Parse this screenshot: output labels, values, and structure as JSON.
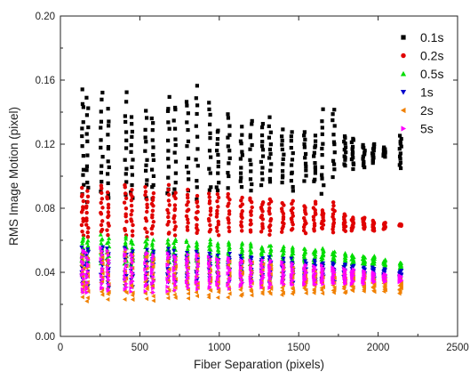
{
  "chart_data": {
    "type": "scatter",
    "title": "",
    "xlabel": "Fiber Separation (pixels)",
    "ylabel": "RMS Image Motion (pixel)",
    "xlim": [
      0,
      2500
    ],
    "ylim": [
      0.0,
      0.2
    ],
    "x_ticks": [
      "0",
      "500",
      "1000",
      "1500",
      "2000",
      "2500"
    ],
    "y_ticks": [
      "0.00",
      "0.04",
      "0.08",
      "0.12",
      "0.16",
      "0.20"
    ],
    "grid": false,
    "legend_position": "top-right",
    "x_columns": [
      140,
      170,
      260,
      300,
      410,
      450,
      540,
      580,
      680,
      720,
      800,
      860,
      940,
      990,
      1060,
      1140,
      1200,
      1270,
      1320,
      1400,
      1460,
      1540,
      1600,
      1650,
      1720,
      1790,
      1840,
      1910,
      1970,
      2040,
      2140
    ],
    "series": [
      {
        "name": "0.1s",
        "marker": "square",
        "color": "#000000",
        "y_range_min": [
          0.088,
          0.085,
          0.09,
          0.086,
          0.09,
          0.086,
          0.088,
          0.087,
          0.088,
          0.087,
          0.092,
          0.087,
          0.09,
          0.09,
          0.094,
          0.093,
          0.092,
          0.095,
          0.095,
          0.095,
          0.09,
          0.098,
          0.096,
          0.088,
          0.1,
          0.106,
          0.105,
          0.105,
          0.108,
          0.112,
          0.105
        ],
        "y_range_max": [
          0.153,
          0.148,
          0.152,
          0.14,
          0.151,
          0.138,
          0.14,
          0.137,
          0.15,
          0.145,
          0.148,
          0.156,
          0.148,
          0.13,
          0.14,
          0.13,
          0.135,
          0.133,
          0.136,
          0.128,
          0.128,
          0.128,
          0.125,
          0.14,
          0.141,
          0.125,
          0.124,
          0.12,
          0.12,
          0.118,
          0.126
        ]
      },
      {
        "name": "0.2s",
        "marker": "circle",
        "color": "#e00000",
        "y_range_min": [
          0.064,
          0.062,
          0.065,
          0.064,
          0.062,
          0.064,
          0.063,
          0.064,
          0.063,
          0.064,
          0.066,
          0.064,
          0.065,
          0.063,
          0.066,
          0.066,
          0.065,
          0.066,
          0.064,
          0.065,
          0.066,
          0.065,
          0.066,
          0.067,
          0.065,
          0.066,
          0.066,
          0.067,
          0.066,
          0.067,
          0.069
        ],
        "y_range_max": [
          0.092,
          0.09,
          0.094,
          0.09,
          0.095,
          0.092,
          0.093,
          0.09,
          0.094,
          0.09,
          0.091,
          0.087,
          0.09,
          0.088,
          0.089,
          0.086,
          0.087,
          0.084,
          0.086,
          0.083,
          0.084,
          0.082,
          0.084,
          0.079,
          0.083,
          0.076,
          0.074,
          0.074,
          0.072,
          0.071,
          0.07
        ]
      },
      {
        "name": "0.5s",
        "marker": "triangle-up",
        "color": "#00dd00",
        "y_range_min": [
          0.045,
          0.044,
          0.046,
          0.044,
          0.045,
          0.044,
          0.045,
          0.044,
          0.046,
          0.045,
          0.045,
          0.046,
          0.046,
          0.045,
          0.046,
          0.046,
          0.045,
          0.046,
          0.045,
          0.046,
          0.046,
          0.046,
          0.045,
          0.046,
          0.046,
          0.045,
          0.045,
          0.045,
          0.044,
          0.043,
          0.042
        ],
        "y_range_max": [
          0.062,
          0.06,
          0.063,
          0.061,
          0.062,
          0.06,
          0.061,
          0.06,
          0.06,
          0.061,
          0.06,
          0.059,
          0.06,
          0.058,
          0.059,
          0.058,
          0.058,
          0.056,
          0.057,
          0.056,
          0.056,
          0.055,
          0.054,
          0.055,
          0.053,
          0.052,
          0.051,
          0.05,
          0.05,
          0.048,
          0.046
        ]
      },
      {
        "name": "1s",
        "marker": "triangle-down",
        "color": "#0000cc",
        "y_range_min": [
          0.032,
          0.03,
          0.033,
          0.03,
          0.032,
          0.031,
          0.032,
          0.031,
          0.033,
          0.032,
          0.032,
          0.033,
          0.033,
          0.032,
          0.033,
          0.033,
          0.033,
          0.034,
          0.033,
          0.034,
          0.033,
          0.034,
          0.034,
          0.034,
          0.034,
          0.035,
          0.035,
          0.035,
          0.035,
          0.036,
          0.036
        ],
        "y_range_max": [
          0.055,
          0.054,
          0.056,
          0.054,
          0.056,
          0.053,
          0.054,
          0.053,
          0.054,
          0.053,
          0.052,
          0.053,
          0.052,
          0.05,
          0.051,
          0.05,
          0.05,
          0.049,
          0.049,
          0.048,
          0.048,
          0.047,
          0.047,
          0.046,
          0.046,
          0.045,
          0.044,
          0.043,
          0.043,
          0.042,
          0.041
        ]
      },
      {
        "name": "2s",
        "marker": "triangle-left",
        "color": "#f08000",
        "y_range_min": [
          0.024,
          0.022,
          0.025,
          0.023,
          0.024,
          0.023,
          0.024,
          0.023,
          0.024,
          0.024,
          0.024,
          0.025,
          0.024,
          0.025,
          0.025,
          0.025,
          0.026,
          0.026,
          0.026,
          0.026,
          0.026,
          0.027,
          0.027,
          0.027,
          0.027,
          0.027,
          0.028,
          0.028,
          0.028,
          0.028,
          0.027
        ],
        "y_range_max": [
          0.052,
          0.05,
          0.053,
          0.051,
          0.052,
          0.05,
          0.051,
          0.049,
          0.05,
          0.049,
          0.049,
          0.05,
          0.048,
          0.047,
          0.048,
          0.046,
          0.046,
          0.045,
          0.045,
          0.044,
          0.043,
          0.043,
          0.042,
          0.042,
          0.041,
          0.04,
          0.04,
          0.039,
          0.038,
          0.037,
          0.036
        ]
      },
      {
        "name": "5s",
        "marker": "triangle-right",
        "color": "#ff00ff",
        "y_range_min": [
          0.028,
          0.027,
          0.029,
          0.028,
          0.029,
          0.028,
          0.029,
          0.028,
          0.029,
          0.029,
          0.03,
          0.029,
          0.03,
          0.03,
          0.03,
          0.031,
          0.031,
          0.031,
          0.031,
          0.032,
          0.032,
          0.032,
          0.032,
          0.033,
          0.033,
          0.033,
          0.033,
          0.033,
          0.034,
          0.034,
          0.034
        ],
        "y_range_max": [
          0.054,
          0.052,
          0.055,
          0.053,
          0.054,
          0.052,
          0.053,
          0.051,
          0.052,
          0.051,
          0.051,
          0.051,
          0.05,
          0.049,
          0.049,
          0.048,
          0.048,
          0.047,
          0.047,
          0.046,
          0.045,
          0.045,
          0.044,
          0.044,
          0.043,
          0.042,
          0.042,
          0.041,
          0.04,
          0.039,
          0.038
        ]
      }
    ]
  }
}
